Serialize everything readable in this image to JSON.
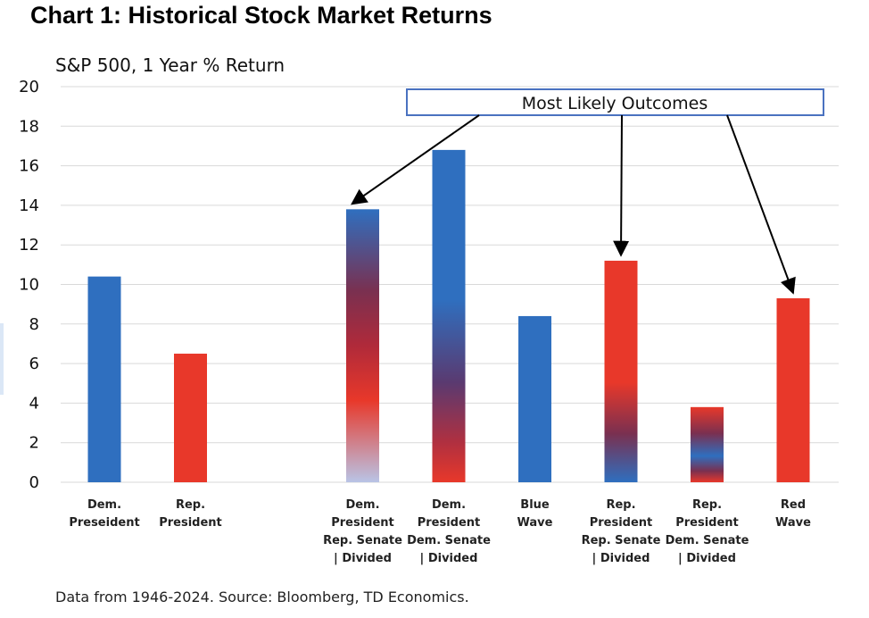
{
  "title": "Chart 1: Historical Stock Market Returns",
  "source": "Data from 1946-2024. Source: Bloomberg, TD Economics.",
  "chart_data": {
    "type": "bar",
    "subtitle": "S&P 500, 1 Year % Return",
    "xlabel": "",
    "ylabel": "",
    "ylim": [
      0,
      20
    ],
    "yticks": [
      0,
      2,
      4,
      6,
      8,
      10,
      12,
      14,
      16,
      18,
      20
    ],
    "grid": true,
    "legend": "none",
    "colors": {
      "dem": "#2f6fbf",
      "rep": "#e8382a",
      "light": "#b9c4e6",
      "mid": "#7a3050"
    },
    "categories": [
      {
        "lines": [
          "Dem.",
          "Preseident"
        ],
        "value": 10.4,
        "style": "dem",
        "slot": 0
      },
      {
        "lines": [
          "Rep.",
          "President"
        ],
        "value": 6.5,
        "style": "rep",
        "slot": 1
      },
      {
        "lines": [
          "Dem.",
          "President",
          "Rep. Senate",
          "| Divided"
        ],
        "value": 13.8,
        "style": "grad-dem-rep",
        "slot": 3
      },
      {
        "lines": [
          "Dem.",
          "President",
          "Dem. Senate",
          "| Divided"
        ],
        "value": 16.8,
        "style": "grad-dem-rep-2",
        "slot": 4
      },
      {
        "lines": [
          "Blue",
          "Wave"
        ],
        "value": 8.4,
        "style": "dem",
        "slot": 5
      },
      {
        "lines": [
          "Rep.",
          "President",
          "Rep. Senate",
          "| Divided"
        ],
        "value": 11.2,
        "style": "grad-rep-dem",
        "slot": 6
      },
      {
        "lines": [
          "Rep.",
          "President",
          "Dem. Senate",
          "| Divided"
        ],
        "value": 3.8,
        "style": "grad-mixed",
        "slot": 7
      },
      {
        "lines": [
          "Red",
          "Wave"
        ],
        "value": 9.3,
        "style": "rep",
        "slot": 8
      }
    ],
    "annotation": {
      "text": "Most Likely Outcomes",
      "targets": [
        2,
        5,
        7
      ]
    }
  }
}
